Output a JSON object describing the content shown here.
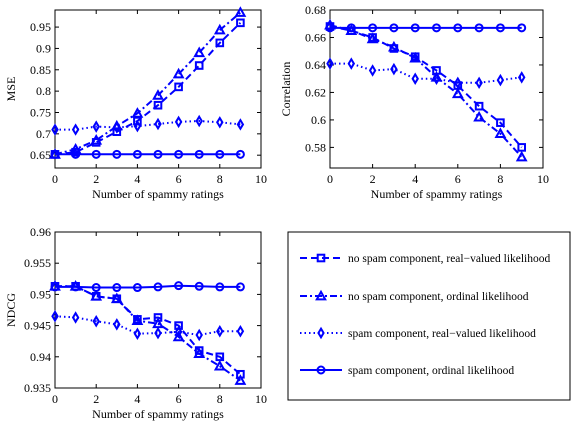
{
  "chart_data": [
    {
      "type": "line",
      "xlabel": "Number of spammy ratings",
      "ylabel": "MSE",
      "xlim": [
        0,
        10
      ],
      "ylim": [
        0.62,
        0.99
      ],
      "xticks": [
        "0",
        "2",
        "4",
        "6",
        "8",
        "10"
      ],
      "yticks": [
        "0.65",
        "0.7",
        "0.75",
        "0.8",
        "0.85",
        "0.9",
        "0.95"
      ],
      "x": [
        0,
        1,
        2,
        3,
        4,
        5,
        6,
        7,
        8,
        9
      ],
      "series": [
        {
          "name": "no spam component, real−valued likelihood",
          "values": [
            0.652,
            0.657,
            0.68,
            0.705,
            0.73,
            0.767,
            0.81,
            0.86,
            0.913,
            0.96
          ]
        },
        {
          "name": "no spam component, ordinal likelihood",
          "values": [
            0.652,
            0.664,
            0.685,
            0.718,
            0.748,
            0.79,
            0.84,
            0.89,
            0.943,
            0.984
          ]
        },
        {
          "name": "spam component, real−valued likelihood",
          "values": [
            0.71,
            0.71,
            0.717,
            0.715,
            0.718,
            0.723,
            0.728,
            0.73,
            0.727,
            0.722
          ]
        },
        {
          "name": "spam component, ordinal likelihood",
          "values": [
            0.652,
            0.652,
            0.652,
            0.652,
            0.652,
            0.652,
            0.652,
            0.652,
            0.652,
            0.652
          ]
        }
      ]
    },
    {
      "type": "line",
      "xlabel": "Number of spammy ratings",
      "ylabel": "Correlation",
      "xlim": [
        0,
        10
      ],
      "ylim": [
        0.565,
        0.68
      ],
      "xticks": [
        "0",
        "2",
        "4",
        "6",
        "8",
        "10"
      ],
      "yticks": [
        "0.58",
        "0.6",
        "0.62",
        "0.64",
        "0.66",
        "0.68"
      ],
      "x": [
        0,
        1,
        2,
        3,
        4,
        5,
        6,
        7,
        8,
        9
      ],
      "series": [
        {
          "name": "no spam component, real−valued likelihood",
          "values": [
            0.668,
            0.665,
            0.66,
            0.652,
            0.646,
            0.636,
            0.625,
            0.61,
            0.598,
            0.58
          ]
        },
        {
          "name": "no spam component, ordinal likelihood",
          "values": [
            0.669,
            0.665,
            0.659,
            0.653,
            0.645,
            0.631,
            0.619,
            0.602,
            0.59,
            0.573
          ]
        },
        {
          "name": "spam component, real−valued likelihood",
          "values": [
            0.641,
            0.641,
            0.636,
            0.637,
            0.63,
            0.63,
            0.627,
            0.627,
            0.629,
            0.631
          ]
        },
        {
          "name": "spam component, ordinal likelihood",
          "values": [
            0.667,
            0.667,
            0.667,
            0.667,
            0.667,
            0.667,
            0.667,
            0.667,
            0.667,
            0.667
          ]
        }
      ]
    },
    {
      "type": "line",
      "xlabel": "Number of spammy ratings",
      "ylabel": "NDCG",
      "xlim": [
        0,
        10
      ],
      "ylim": [
        0.935,
        0.96
      ],
      "xticks": [
        "0",
        "2",
        "4",
        "6",
        "8",
        "10"
      ],
      "yticks": [
        "0.935",
        "0.94",
        "0.945",
        "0.95",
        "0.955",
        "0.96"
      ],
      "x": [
        0,
        1,
        2,
        3,
        4,
        5,
        6,
        7,
        8,
        9
      ],
      "series": [
        {
          "name": "no spam component, real−valued likelihood",
          "values": [
            0.9513,
            0.9513,
            0.9497,
            0.9493,
            0.946,
            0.9463,
            0.945,
            0.941,
            0.94,
            0.9372
          ]
        },
        {
          "name": "no spam component, ordinal likelihood",
          "values": [
            0.9513,
            0.9513,
            0.9497,
            0.9493,
            0.9458,
            0.9453,
            0.9432,
            0.9405,
            0.9385,
            0.9362
          ]
        },
        {
          "name": "spam component, real−valued likelihood",
          "values": [
            0.9465,
            0.9463,
            0.9457,
            0.9452,
            0.9437,
            0.9438,
            0.944,
            0.9435,
            0.9441,
            0.9441
          ]
        },
        {
          "name": "spam component, ordinal likelihood",
          "values": [
            0.9512,
            0.9512,
            0.9511,
            0.9511,
            0.9511,
            0.9512,
            0.9514,
            0.9513,
            0.9512,
            0.9512
          ]
        }
      ]
    }
  ],
  "legend": {
    "entries": [
      "no spam component, real−valued likelihood",
      "no spam component, ordinal likelihood",
      "spam component, real−valued likelihood",
      "spam component, ordinal likelihood"
    ],
    "markers": [
      "square",
      "triangle",
      "diamond",
      "circle"
    ],
    "line_styles": [
      "dashed",
      "dash-dot",
      "dotted",
      "solid"
    ]
  },
  "colors": {
    "series": "#0000ff",
    "axes": "#000000",
    "background": "#ffffff"
  }
}
